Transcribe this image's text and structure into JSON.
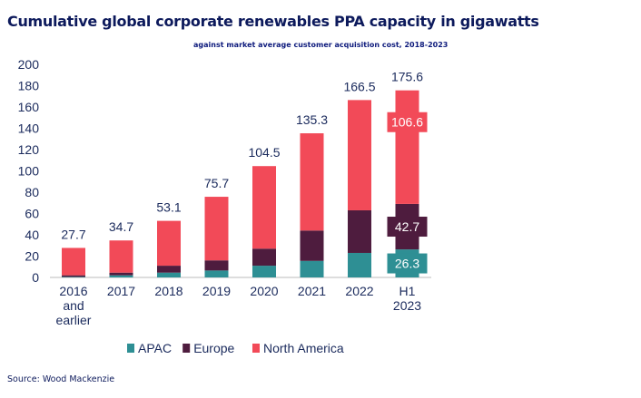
{
  "chart_data": {
    "type": "bar",
    "stacked": true,
    "title": "Cumulative global corporate renewables PPA capacity in gigawatts",
    "categories": [
      [
        "2016",
        "and",
        "earlier"
      ],
      [
        "2017"
      ],
      [
        "2018"
      ],
      [
        "2019"
      ],
      [
        "2020"
      ],
      [
        "2021"
      ],
      [
        "2022"
      ],
      [
        "H1",
        "2023"
      ]
    ],
    "series": [
      {
        "name": "APAC",
        "color": "#2e8f94",
        "values": [
          0.5,
          2,
          4.5,
          6.5,
          11,
          15.5,
          23,
          26.3
        ]
      },
      {
        "name": "Europe",
        "color": "#4e1c3e",
        "values": [
          1.5,
          2.5,
          6.5,
          9.5,
          16,
          28.5,
          40,
          42.7
        ]
      },
      {
        "name": "North America",
        "color": "#f24a58",
        "values": [
          25.7,
          30.2,
          42.1,
          59.7,
          77.5,
          91.3,
          103.5,
          106.6
        ]
      }
    ],
    "totals": [
      "27.7",
      "34.7",
      "53.1",
      "75.7",
      "104.5",
      "135.3",
      "166.5",
      "175.6"
    ],
    "segment_labels_last": [
      "26.3",
      "42.7",
      "106.6"
    ],
    "ylim": [
      0,
      200
    ],
    "yticks": [
      "0",
      "20",
      "40",
      "60",
      "80",
      "100",
      "120",
      "140",
      "160",
      "180",
      "200"
    ],
    "grid": false,
    "legend": "bottom",
    "annotation": "against market average customer acquisition cost, 2018-2023"
  },
  "source": "Source: Wood Mackenzie"
}
